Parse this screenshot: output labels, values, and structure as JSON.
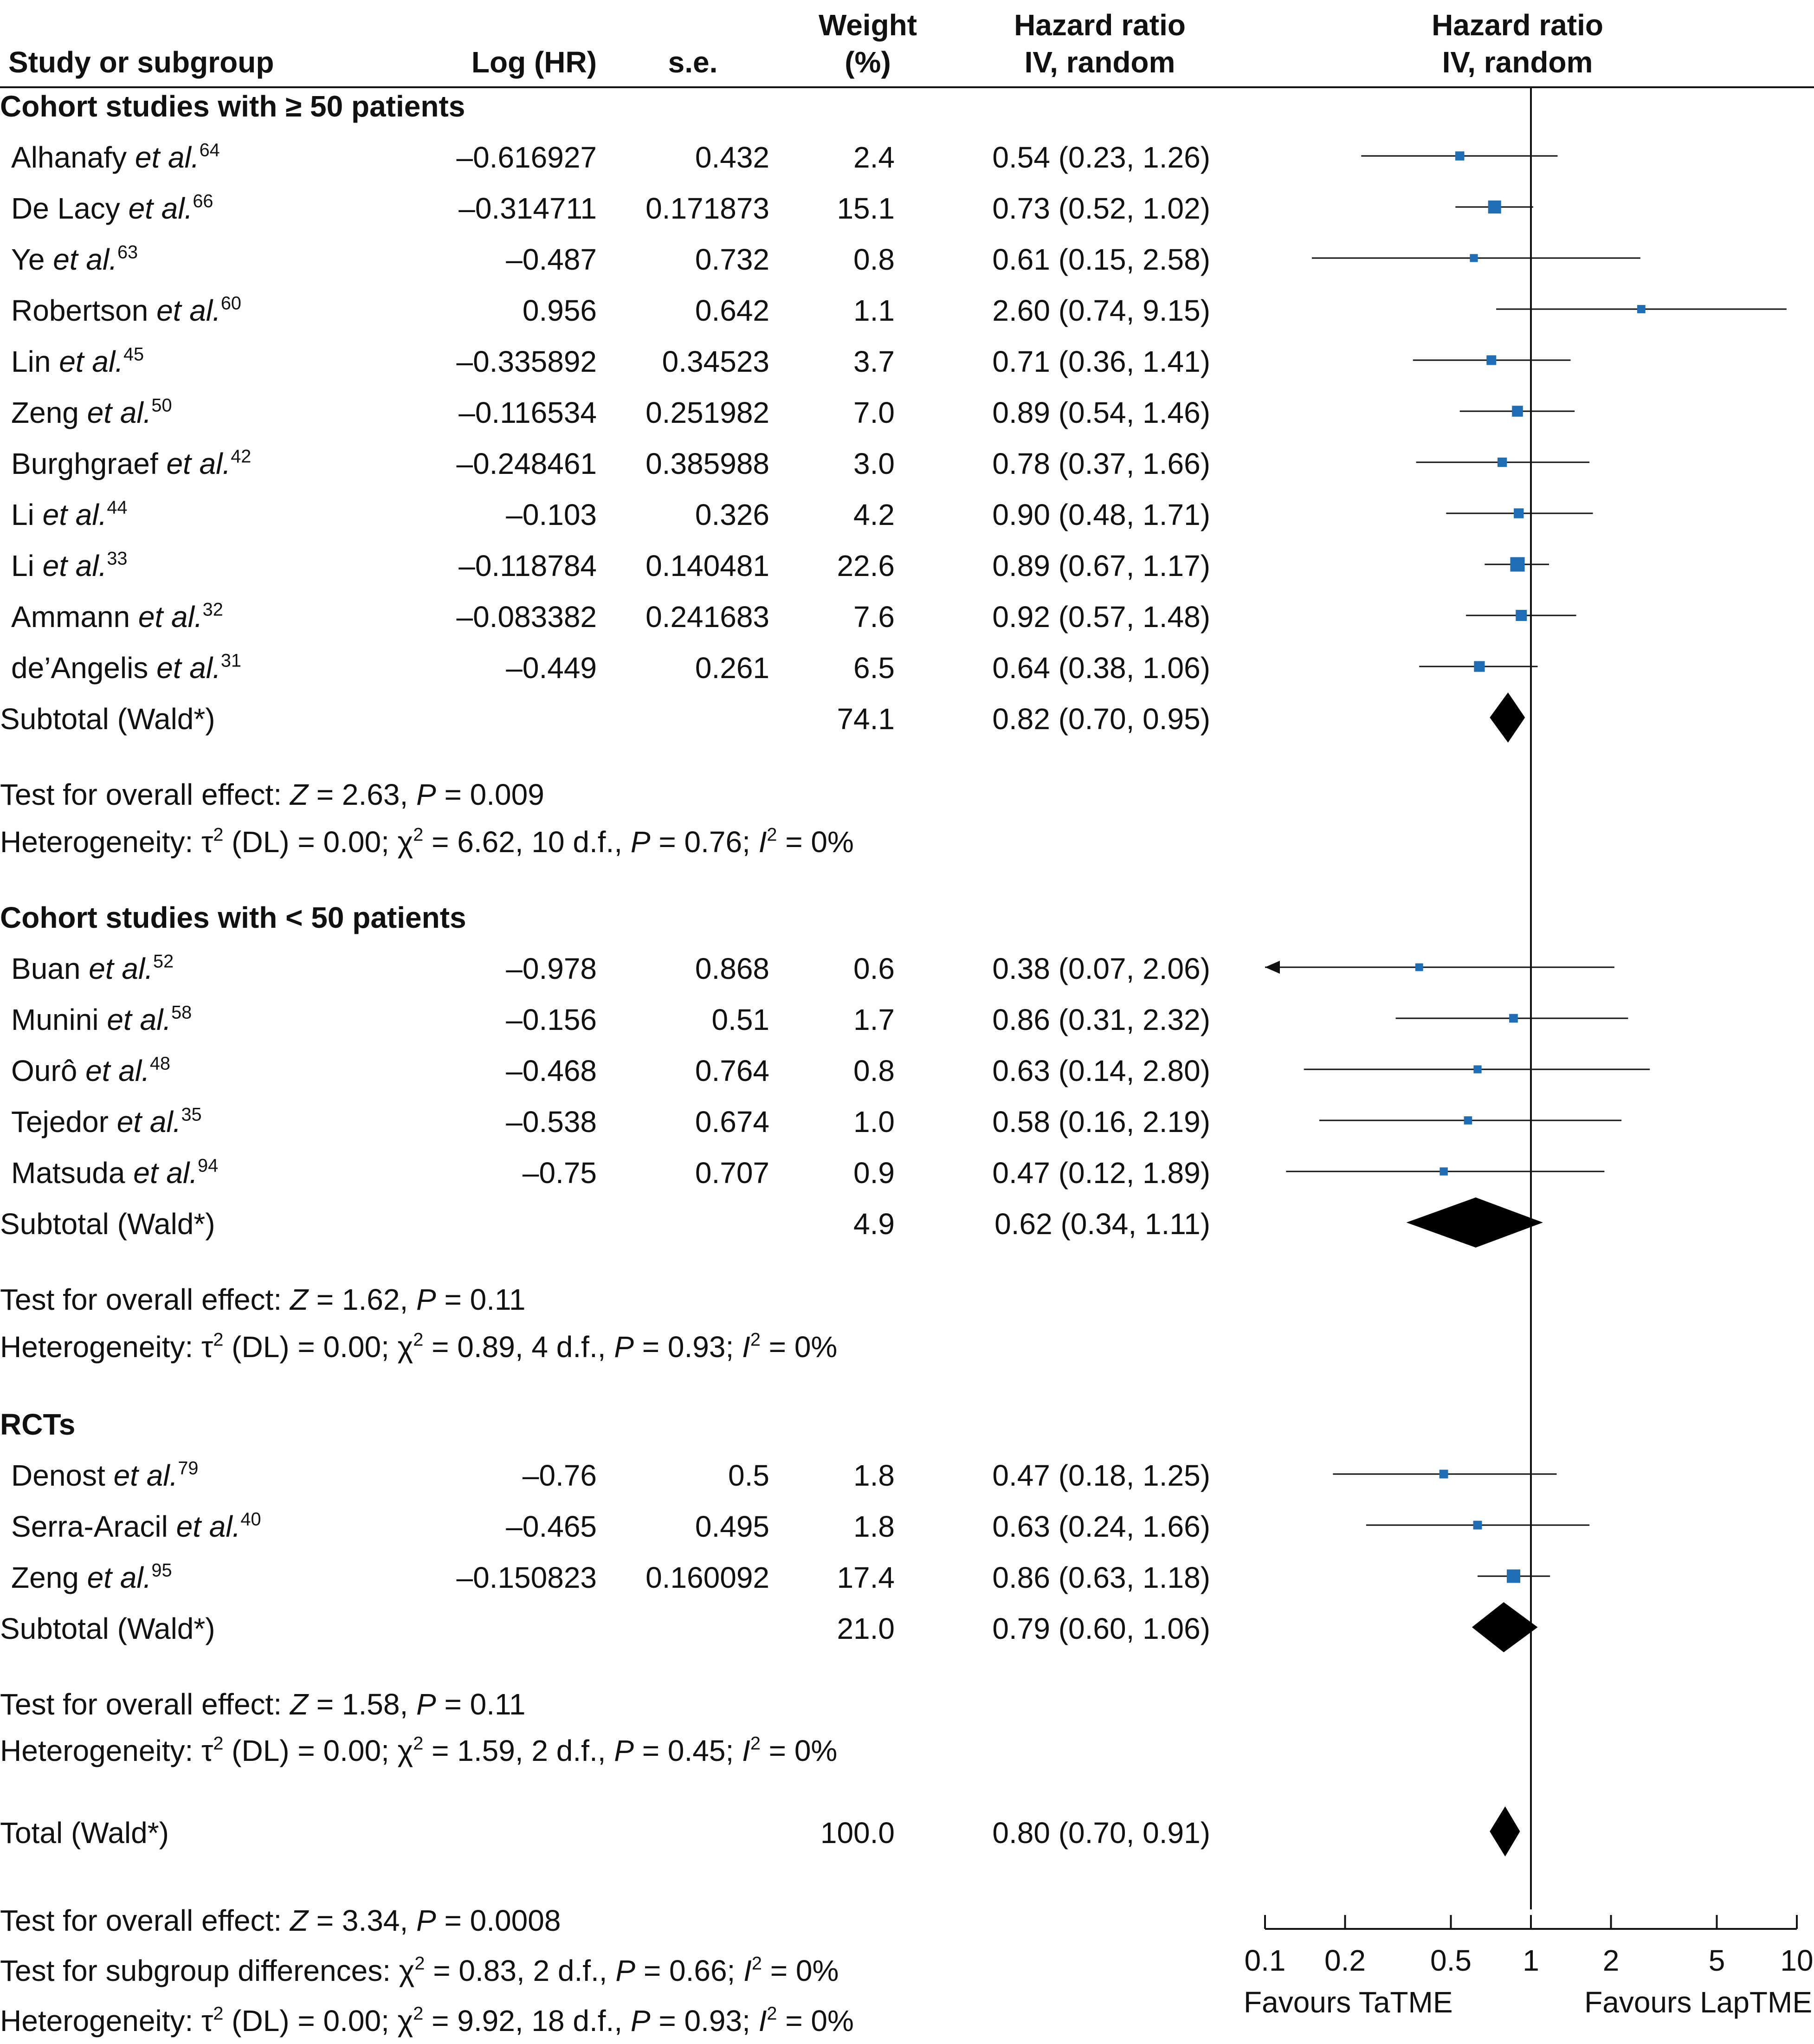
{
  "columns": {
    "study": "Study or subgroup",
    "loghr": "Log (HR)",
    "se": "s.e.",
    "weight": [
      "Weight",
      "(%)"
    ],
    "hr_text": [
      "Hazard ratio",
      "IV, random"
    ],
    "hr_plot": [
      "Hazard ratio",
      "IV, random"
    ]
  },
  "rows": [
    {
      "type": "section",
      "label": "Cohort studies with ≥ 50 patients"
    },
    {
      "type": "study",
      "name": "Alhanafy",
      "etal": "et al.",
      "ref": "64",
      "loghr": "–0.616927",
      "se": "0.432",
      "weight": "2.4",
      "hr": "0.54 (0.23, 1.26)"
    },
    {
      "type": "study",
      "name": "De Lacy",
      "etal": "et al.",
      "ref": "66",
      "loghr": "–0.314711",
      "se": "0.171873",
      "weight": "15.1",
      "hr": "0.73 (0.52, 1.02)"
    },
    {
      "type": "study",
      "name": "Ye",
      "etal": "et al.",
      "ref": "63",
      "loghr": "–0.487",
      "se": "0.732",
      "weight": "0.8",
      "hr": "0.61 (0.15, 2.58)"
    },
    {
      "type": "study",
      "name": "Robertson",
      "etal": "et al.",
      "ref": "60",
      "loghr": "0.956",
      "se": "0.642",
      "weight": "1.1",
      "hr": "2.60 (0.74, 9.15)"
    },
    {
      "type": "study",
      "name": "Lin",
      "etal": "et al.",
      "ref": "45",
      "loghr": "–0.335892",
      "se": "0.34523",
      "weight": "3.7",
      "hr": "0.71 (0.36, 1.41)"
    },
    {
      "type": "study",
      "name": "Zeng",
      "etal": "et al.",
      "ref": "50",
      "loghr": "–0.116534",
      "se": "0.251982",
      "weight": "7.0",
      "hr": "0.89 (0.54, 1.46)"
    },
    {
      "type": "study",
      "name": "Burghgraef",
      "etal": "et al.",
      "ref": "42",
      "loghr": "–0.248461",
      "se": "0.385988",
      "weight": "3.0",
      "hr": "0.78 (0.37, 1.66)"
    },
    {
      "type": "study",
      "name": "Li",
      "etal": "et al.",
      "ref": "44",
      "loghr": "–0.103",
      "se": "0.326",
      "weight": "4.2",
      "hr": "0.90 (0.48, 1.71)"
    },
    {
      "type": "study",
      "name": "Li",
      "etal": "et al.",
      "ref": "33",
      "loghr": "–0.118784",
      "se": "0.140481",
      "weight": "22.6",
      "hr": "0.89 (0.67, 1.17)"
    },
    {
      "type": "study",
      "name": "Ammann",
      "etal": "et al.",
      "ref": "32",
      "loghr": "–0.083382",
      "se": "0.241683",
      "weight": "7.6",
      "hr": "0.92 (0.57, 1.48)"
    },
    {
      "type": "study",
      "name": "de’Angelis",
      "etal": "et al.",
      "ref": "31",
      "loghr": "–0.449",
      "se": "0.261",
      "weight": "6.5",
      "hr": "0.64 (0.38, 1.06)"
    },
    {
      "type": "subtotal",
      "label": "Subtotal (Wald*)",
      "weight": "74.1",
      "hr": "0.82 (0.70, 0.95)"
    },
    {
      "type": "note",
      "text": [
        "Test for overall effect: ",
        {
          "i": "Z"
        },
        " = 2.63, ",
        {
          "i": "P"
        },
        " = 0.009"
      ]
    },
    {
      "type": "note",
      "text": [
        "Heterogeneity: τ",
        {
          "sup": "2"
        },
        " (DL) = 0.00; χ",
        {
          "sup": "2"
        },
        " = 6.62, 10 d.f., ",
        {
          "i": "P"
        },
        " = 0.76; ",
        {
          "i": "I"
        },
        {
          "sup": "2"
        },
        " = 0%"
      ]
    },
    {
      "type": "section",
      "label": "Cohort studies with < 50 patients"
    },
    {
      "type": "study",
      "name": "Buan",
      "etal": "et al.",
      "ref": "52",
      "loghr": "–0.978",
      "se": "0.868",
      "weight": "0.6",
      "hr": "0.38 (0.07, 2.06)"
    },
    {
      "type": "study",
      "name": "Munini",
      "etal": "et al.",
      "ref": "58",
      "loghr": "–0.156",
      "se": "0.51",
      "weight": "1.7",
      "hr": "0.86 (0.31, 2.32)"
    },
    {
      "type": "study",
      "name": "Ourô",
      "etal": "et al.",
      "ref": "48",
      "loghr": "–0.468",
      "se": "0.764",
      "weight": "0.8",
      "hr": "0.63 (0.14, 2.80)"
    },
    {
      "type": "study",
      "name": "Tejedor",
      "etal": "et al.",
      "ref": "35",
      "loghr": "–0.538",
      "se": "0.674",
      "weight": "1.0",
      "hr": "0.58 (0.16, 2.19)"
    },
    {
      "type": "study",
      "name": "Matsuda",
      "etal": "et al.",
      "ref": "94",
      "loghr": "–0.75",
      "se": "0.707",
      "weight": "0.9",
      "hr": "0.47 (0.12, 1.89)"
    },
    {
      "type": "subtotal",
      "label": "Subtotal (Wald*)",
      "weight": "4.9",
      "hr": "0.62 (0.34, 1.11)"
    },
    {
      "type": "note",
      "text": [
        "Test for overall effect: ",
        {
          "i": "Z"
        },
        " = 1.62, ",
        {
          "i": "P"
        },
        " = 0.11"
      ]
    },
    {
      "type": "note",
      "text": [
        "Heterogeneity: τ",
        {
          "sup": "2"
        },
        " (DL) = 0.00; χ",
        {
          "sup": "2"
        },
        " = 0.89, 4 d.f., ",
        {
          "i": "P"
        },
        " = 0.93; ",
        {
          "i": "I"
        },
        {
          "sup": "2"
        },
        " = 0%"
      ]
    },
    {
      "type": "section",
      "label": "RCTs"
    },
    {
      "type": "study",
      "name": "Denost",
      "etal": "et al.",
      "ref": "79",
      "loghr": "–0.76",
      "se": "0.5",
      "weight": "1.8",
      "hr": "0.47 (0.18, 1.25)"
    },
    {
      "type": "study",
      "name": "Serra-Aracil",
      "etal": "et al.",
      "ref": "40",
      "loghr": "–0.465",
      "se": "0.495",
      "weight": "1.8",
      "hr": "0.63 (0.24, 1.66)"
    },
    {
      "type": "study",
      "name": "Zeng",
      "etal": "et al.",
      "ref": "95",
      "loghr": "–0.150823",
      "se": "0.160092",
      "weight": "17.4",
      "hr": "0.86 (0.63, 1.18)"
    },
    {
      "type": "subtotal",
      "label": "Subtotal (Wald*)",
      "weight": "21.0",
      "hr": "0.79 (0.60, 1.06)"
    },
    {
      "type": "note",
      "text": [
        "Test for overall effect: ",
        {
          "i": "Z"
        },
        " = 1.58, ",
        {
          "i": "P"
        },
        " = 0.11"
      ]
    },
    {
      "type": "note",
      "text": [
        "Heterogeneity: τ",
        {
          "sup": "2"
        },
        " (DL) = 0.00; χ",
        {
          "sup": "2"
        },
        " = 1.59, 2 d.f., ",
        {
          "i": "P"
        },
        " = 0.45; ",
        {
          "i": "I"
        },
        {
          "sup": "2"
        },
        " = 0%"
      ]
    },
    {
      "type": "subtotal",
      "label": "Total (Wald*)",
      "weight": "100.0",
      "hr": "0.80 (0.70, 0.91)"
    },
    {
      "type": "note",
      "text": [
        "Test for overall effect: ",
        {
          "i": "Z"
        },
        " = 3.34, ",
        {
          "i": "P"
        },
        " = 0.0008"
      ]
    },
    {
      "type": "note",
      "text": [
        "Test for subgroup differences: χ",
        {
          "sup": "2"
        },
        " = 0.83, 2 d.f., ",
        {
          "i": "P"
        },
        " = 0.66; ",
        {
          "i": "I"
        },
        {
          "sup": "2"
        },
        " = 0%"
      ]
    },
    {
      "type": "note",
      "text": [
        "Heterogeneity: τ",
        {
          "sup": "2"
        },
        " (DL) = 0.00; χ",
        {
          "sup": "2"
        },
        " = 9.92, 18 d.f., ",
        {
          "i": "P"
        },
        " = 0.93; ",
        {
          "i": "I"
        },
        {
          "sup": "2"
        },
        " = 0%"
      ]
    }
  ],
  "chart_data": {
    "type": "forest",
    "x_scale": "log",
    "xlim": [
      0.1,
      10
    ],
    "x_ticks": [
      0.1,
      0.2,
      0.5,
      1,
      2,
      5,
      10
    ],
    "x_tick_labels": [
      "0.1",
      "0.2",
      "0.5",
      "1",
      "2",
      "5",
      "10"
    ],
    "null_line": 1,
    "favours_left": "Favours TaTME",
    "favours_right": "Favours LapTME",
    "studies": [
      {
        "label": "Alhanafy et al.",
        "hr": 0.54,
        "lo": 0.23,
        "hi": 1.26,
        "weight": 2.4
      },
      {
        "label": "De Lacy et al.",
        "hr": 0.73,
        "lo": 0.52,
        "hi": 1.02,
        "weight": 15.1
      },
      {
        "label": "Ye et al.",
        "hr": 0.61,
        "lo": 0.15,
        "hi": 2.58,
        "weight": 0.8
      },
      {
        "label": "Robertson et al.",
        "hr": 2.6,
        "lo": 0.74,
        "hi": 9.15,
        "weight": 1.1
      },
      {
        "label": "Lin et al.",
        "hr": 0.71,
        "lo": 0.36,
        "hi": 1.41,
        "weight": 3.7
      },
      {
        "label": "Zeng et al.",
        "hr": 0.89,
        "lo": 0.54,
        "hi": 1.46,
        "weight": 7.0
      },
      {
        "label": "Burghgraef et al.",
        "hr": 0.78,
        "lo": 0.37,
        "hi": 1.66,
        "weight": 3.0
      },
      {
        "label": "Li et al.",
        "hr": 0.9,
        "lo": 0.48,
        "hi": 1.71,
        "weight": 4.2
      },
      {
        "label": "Li et al.",
        "hr": 0.89,
        "lo": 0.67,
        "hi": 1.17,
        "weight": 22.6
      },
      {
        "label": "Ammann et al.",
        "hr": 0.92,
        "lo": 0.57,
        "hi": 1.48,
        "weight": 7.6
      },
      {
        "label": "de’Angelis et al.",
        "hr": 0.64,
        "lo": 0.38,
        "hi": 1.06,
        "weight": 6.5
      },
      {
        "label": "Subtotal (Wald*)",
        "hr": 0.82,
        "lo": 0.7,
        "hi": 0.95,
        "weight": 74.1,
        "summary": true
      },
      {
        "label": "Buan et al.",
        "hr": 0.38,
        "lo": 0.07,
        "hi": 2.06,
        "weight": 0.6
      },
      {
        "label": "Munini et al.",
        "hr": 0.86,
        "lo": 0.31,
        "hi": 2.32,
        "weight": 1.7
      },
      {
        "label": "Ourô et al.",
        "hr": 0.63,
        "lo": 0.14,
        "hi": 2.8,
        "weight": 0.8
      },
      {
        "label": "Tejedor et al.",
        "hr": 0.58,
        "lo": 0.16,
        "hi": 2.19,
        "weight": 1.0
      },
      {
        "label": "Matsuda et al.",
        "hr": 0.47,
        "lo": 0.12,
        "hi": 1.89,
        "weight": 0.9
      },
      {
        "label": "Subtotal (Wald*)",
        "hr": 0.62,
        "lo": 0.34,
        "hi": 1.11,
        "weight": 4.9,
        "summary": true
      },
      {
        "label": "Denost et al.",
        "hr": 0.47,
        "lo": 0.18,
        "hi": 1.25,
        "weight": 1.8
      },
      {
        "label": "Serra-Aracil et al.",
        "hr": 0.63,
        "lo": 0.24,
        "hi": 1.66,
        "weight": 1.8
      },
      {
        "label": "Zeng et al.",
        "hr": 0.86,
        "lo": 0.63,
        "hi": 1.18,
        "weight": 17.4
      },
      {
        "label": "Subtotal (Wald*)",
        "hr": 0.79,
        "lo": 0.6,
        "hi": 1.06,
        "weight": 21.0,
        "summary": true
      },
      {
        "label": "Total (Wald*)",
        "hr": 0.8,
        "lo": 0.7,
        "hi": 0.91,
        "weight": 100.0,
        "summary": true
      }
    ],
    "colors": {
      "marker": "#1f6db5",
      "line": "#111111",
      "diamond": "#000000"
    }
  }
}
